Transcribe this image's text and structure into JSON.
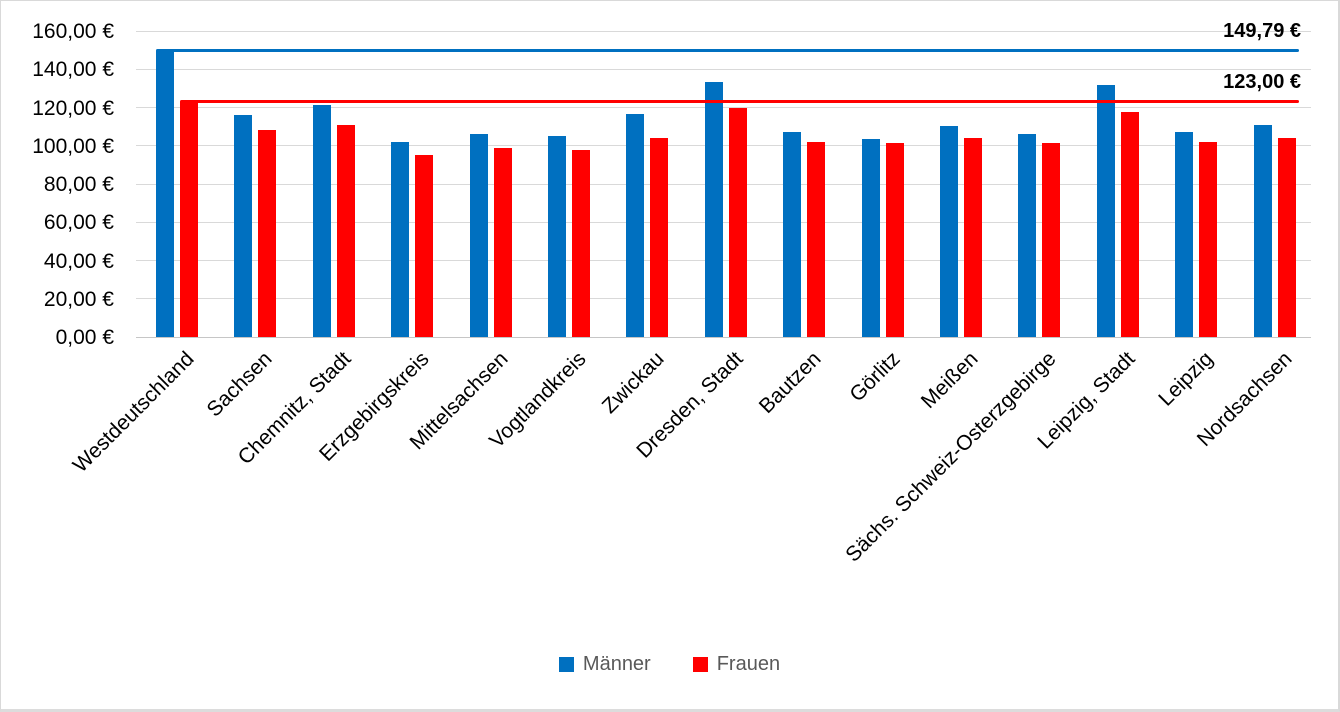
{
  "chart_data": {
    "type": "bar",
    "title": "",
    "categories": [
      "Westdeutschland",
      "Sachsen",
      "Chemnitz, Stadt",
      "Erzgebirgskreis",
      "Mittelsachsen",
      "Vogtlandkreis",
      "Zwickau",
      "Dresden, Stadt",
      "Bautzen",
      "Görlitz",
      "Meißen",
      "Sächs. Schweiz-Osterzgebirge",
      "Leipzig, Stadt",
      "Leipzig",
      "Nordsachsen"
    ],
    "series": [
      {
        "name": "Männer",
        "color": "#0070C0",
        "values": [
          149.79,
          116.0,
          121.3,
          101.7,
          106.4,
          105.2,
          116.5,
          133.5,
          107.4,
          103.5,
          110.5,
          106.3,
          132.0,
          107.4,
          111.0
        ]
      },
      {
        "name": "Frauen",
        "color": "#FF0000",
        "values": [
          123.0,
          108.3,
          110.6,
          95.0,
          99.0,
          98.0,
          104.3,
          120.0,
          102.0,
          101.6,
          104.3,
          101.5,
          117.5,
          101.8,
          104.0
        ]
      }
    ],
    "reference_lines": [
      {
        "label": "149,79 €",
        "value": 149.79,
        "color": "#0070C0",
        "series": "Männer"
      },
      {
        "label": "123,00 €",
        "value": 123.0,
        "color": "#FF0000",
        "series": "Frauen"
      }
    ],
    "y_axis": {
      "min": 0,
      "max": 160,
      "step": 20,
      "ticks": [
        {
          "value": 160,
          "label": "160,00 €"
        },
        {
          "value": 140,
          "label": "140,00 €"
        },
        {
          "value": 120,
          "label": "120,00 €"
        },
        {
          "value": 100,
          "label": "100,00 €"
        },
        {
          "value": 80,
          "label": "80,00 €"
        },
        {
          "value": 60,
          "label": "60,00 €"
        },
        {
          "value": 40,
          "label": "40,00 €"
        },
        {
          "value": 20,
          "label": "20,00 €"
        },
        {
          "value": 0,
          "label": "0,00 €"
        }
      ]
    },
    "legend": {
      "position": "bottom-center",
      "entries": [
        {
          "label": "Männer",
          "color": "#0070C0"
        },
        {
          "label": "Frauen",
          "color": "#FF0000"
        }
      ]
    },
    "grid": true,
    "gridline_color": "#D9D9D9",
    "background_color": "#FFFFFF"
  }
}
